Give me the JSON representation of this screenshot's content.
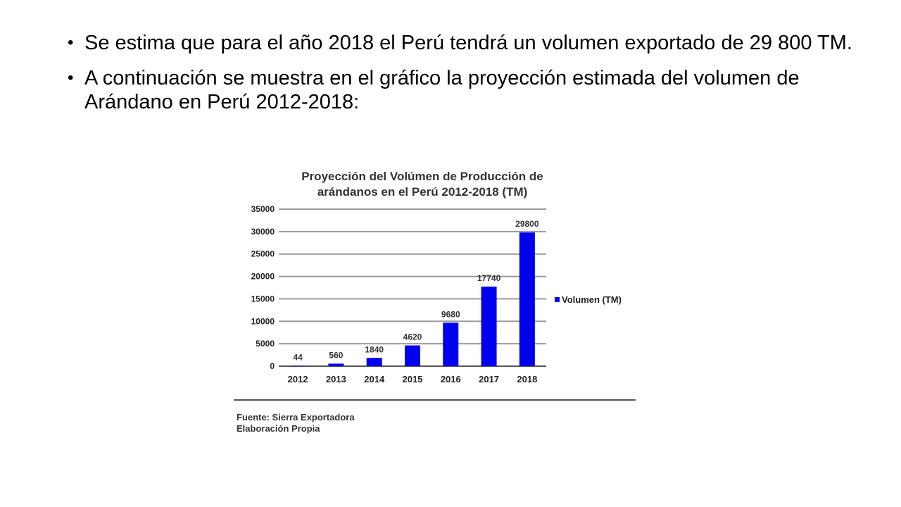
{
  "bullets": [
    {
      "text": "Se estima que para el año 2018 el Perú tendrá un volumen exportado de 29 800 TM."
    },
    {
      "text": "A continuación se muestra en el gráfico la proyección estimada del volumen de Arándano en Perú 2012-2018:"
    }
  ],
  "chart_data": {
    "type": "bar",
    "title_line1": "Proyección del Volúmen de Producción de",
    "title_line2": "arándanos en el Perú 2012-2018 (TM)",
    "categories": [
      "2012",
      "2013",
      "2014",
      "2015",
      "2016",
      "2017",
      "2018"
    ],
    "series": [
      {
        "name": "Volumen (TM)",
        "values": [
          44,
          560,
          1840,
          4620,
          9680,
          17740,
          29800
        ],
        "color": "#0000ee"
      }
    ],
    "data_labels": [
      "44",
      "560",
      "1840",
      "4620",
      "9680",
      "17740",
      "29800"
    ],
    "ylim": [
      0,
      35000
    ],
    "yticks": [
      0,
      5000,
      10000,
      15000,
      20000,
      25000,
      30000,
      35000
    ],
    "grid": true,
    "legend_position": "right"
  },
  "source": {
    "line1": "Fuente: Sierra Exportadora",
    "line2": "Elaboración Propia"
  }
}
